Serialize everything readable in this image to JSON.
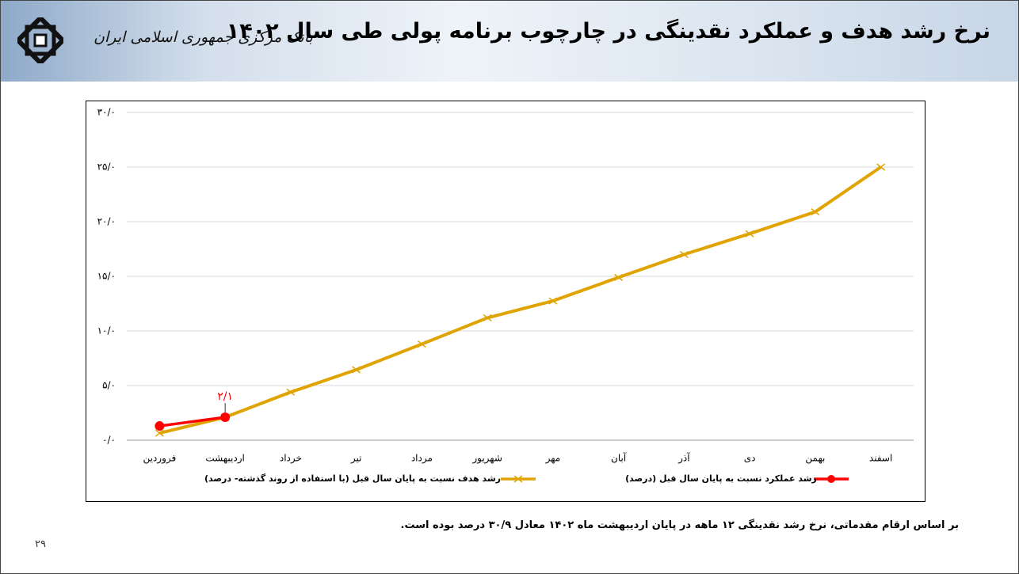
{
  "header": {
    "title": "نرخ رشد هدف و عملکرد نقدینگی در چارچوب برنامه پولی طی سال ۱۴۰۲",
    "logo_text": "بانک مرکزی جمهوری اسلامی ایران"
  },
  "chart_data": {
    "type": "line",
    "categories": [
      "فروردین",
      "اردیبهشت",
      "خرداد",
      "تیر",
      "مرداد",
      "شهریور",
      "مهر",
      "آبان",
      "آذر",
      "دی",
      "بهمن",
      "اسفند"
    ],
    "series": [
      {
        "name": "رشد هدف نسبت به پایان سال قبل (با استفاده از روند گذشته- درصد)",
        "color": "#e0a400",
        "marker": "x",
        "values": [
          0.65,
          2.1,
          4.4,
          6.45,
          8.8,
          11.2,
          12.75,
          14.9,
          17.0,
          18.9,
          20.9,
          25.0
        ]
      },
      {
        "name": "رشد عملکرد نسبت به پایان سال قبل (درصد)",
        "color": "#ff0000",
        "marker": "circle",
        "values": [
          1.3,
          2.1,
          null,
          null,
          null,
          null,
          null,
          null,
          null,
          null,
          null,
          null
        ],
        "value_labels": [
          null,
          "۲/۱",
          null,
          null,
          null,
          null,
          null,
          null,
          null,
          null,
          null,
          null
        ]
      }
    ],
    "ylim": [
      0,
      30
    ],
    "yticks": [
      {
        "value": 0,
        "label": "۰/۰"
      },
      {
        "value": 5,
        "label": "۵/۰"
      },
      {
        "value": 10,
        "label": "۱۰/۰"
      },
      {
        "value": 15,
        "label": "۱۵/۰"
      },
      {
        "value": 20,
        "label": "۲۰/۰"
      },
      {
        "value": 25,
        "label": "۲۵/۰"
      },
      {
        "value": 30,
        "label": "۳۰/۰"
      }
    ],
    "grid": true
  },
  "footnote": "بر اساس ارقام مقدماتی، نرخ رشد نقدینگی ۱۲ ماهه در پایان اردیبهشت ماه ۱۴۰۲ معادل ۳۰/۹ درصد بوده است.",
  "page_number": "۲۹"
}
